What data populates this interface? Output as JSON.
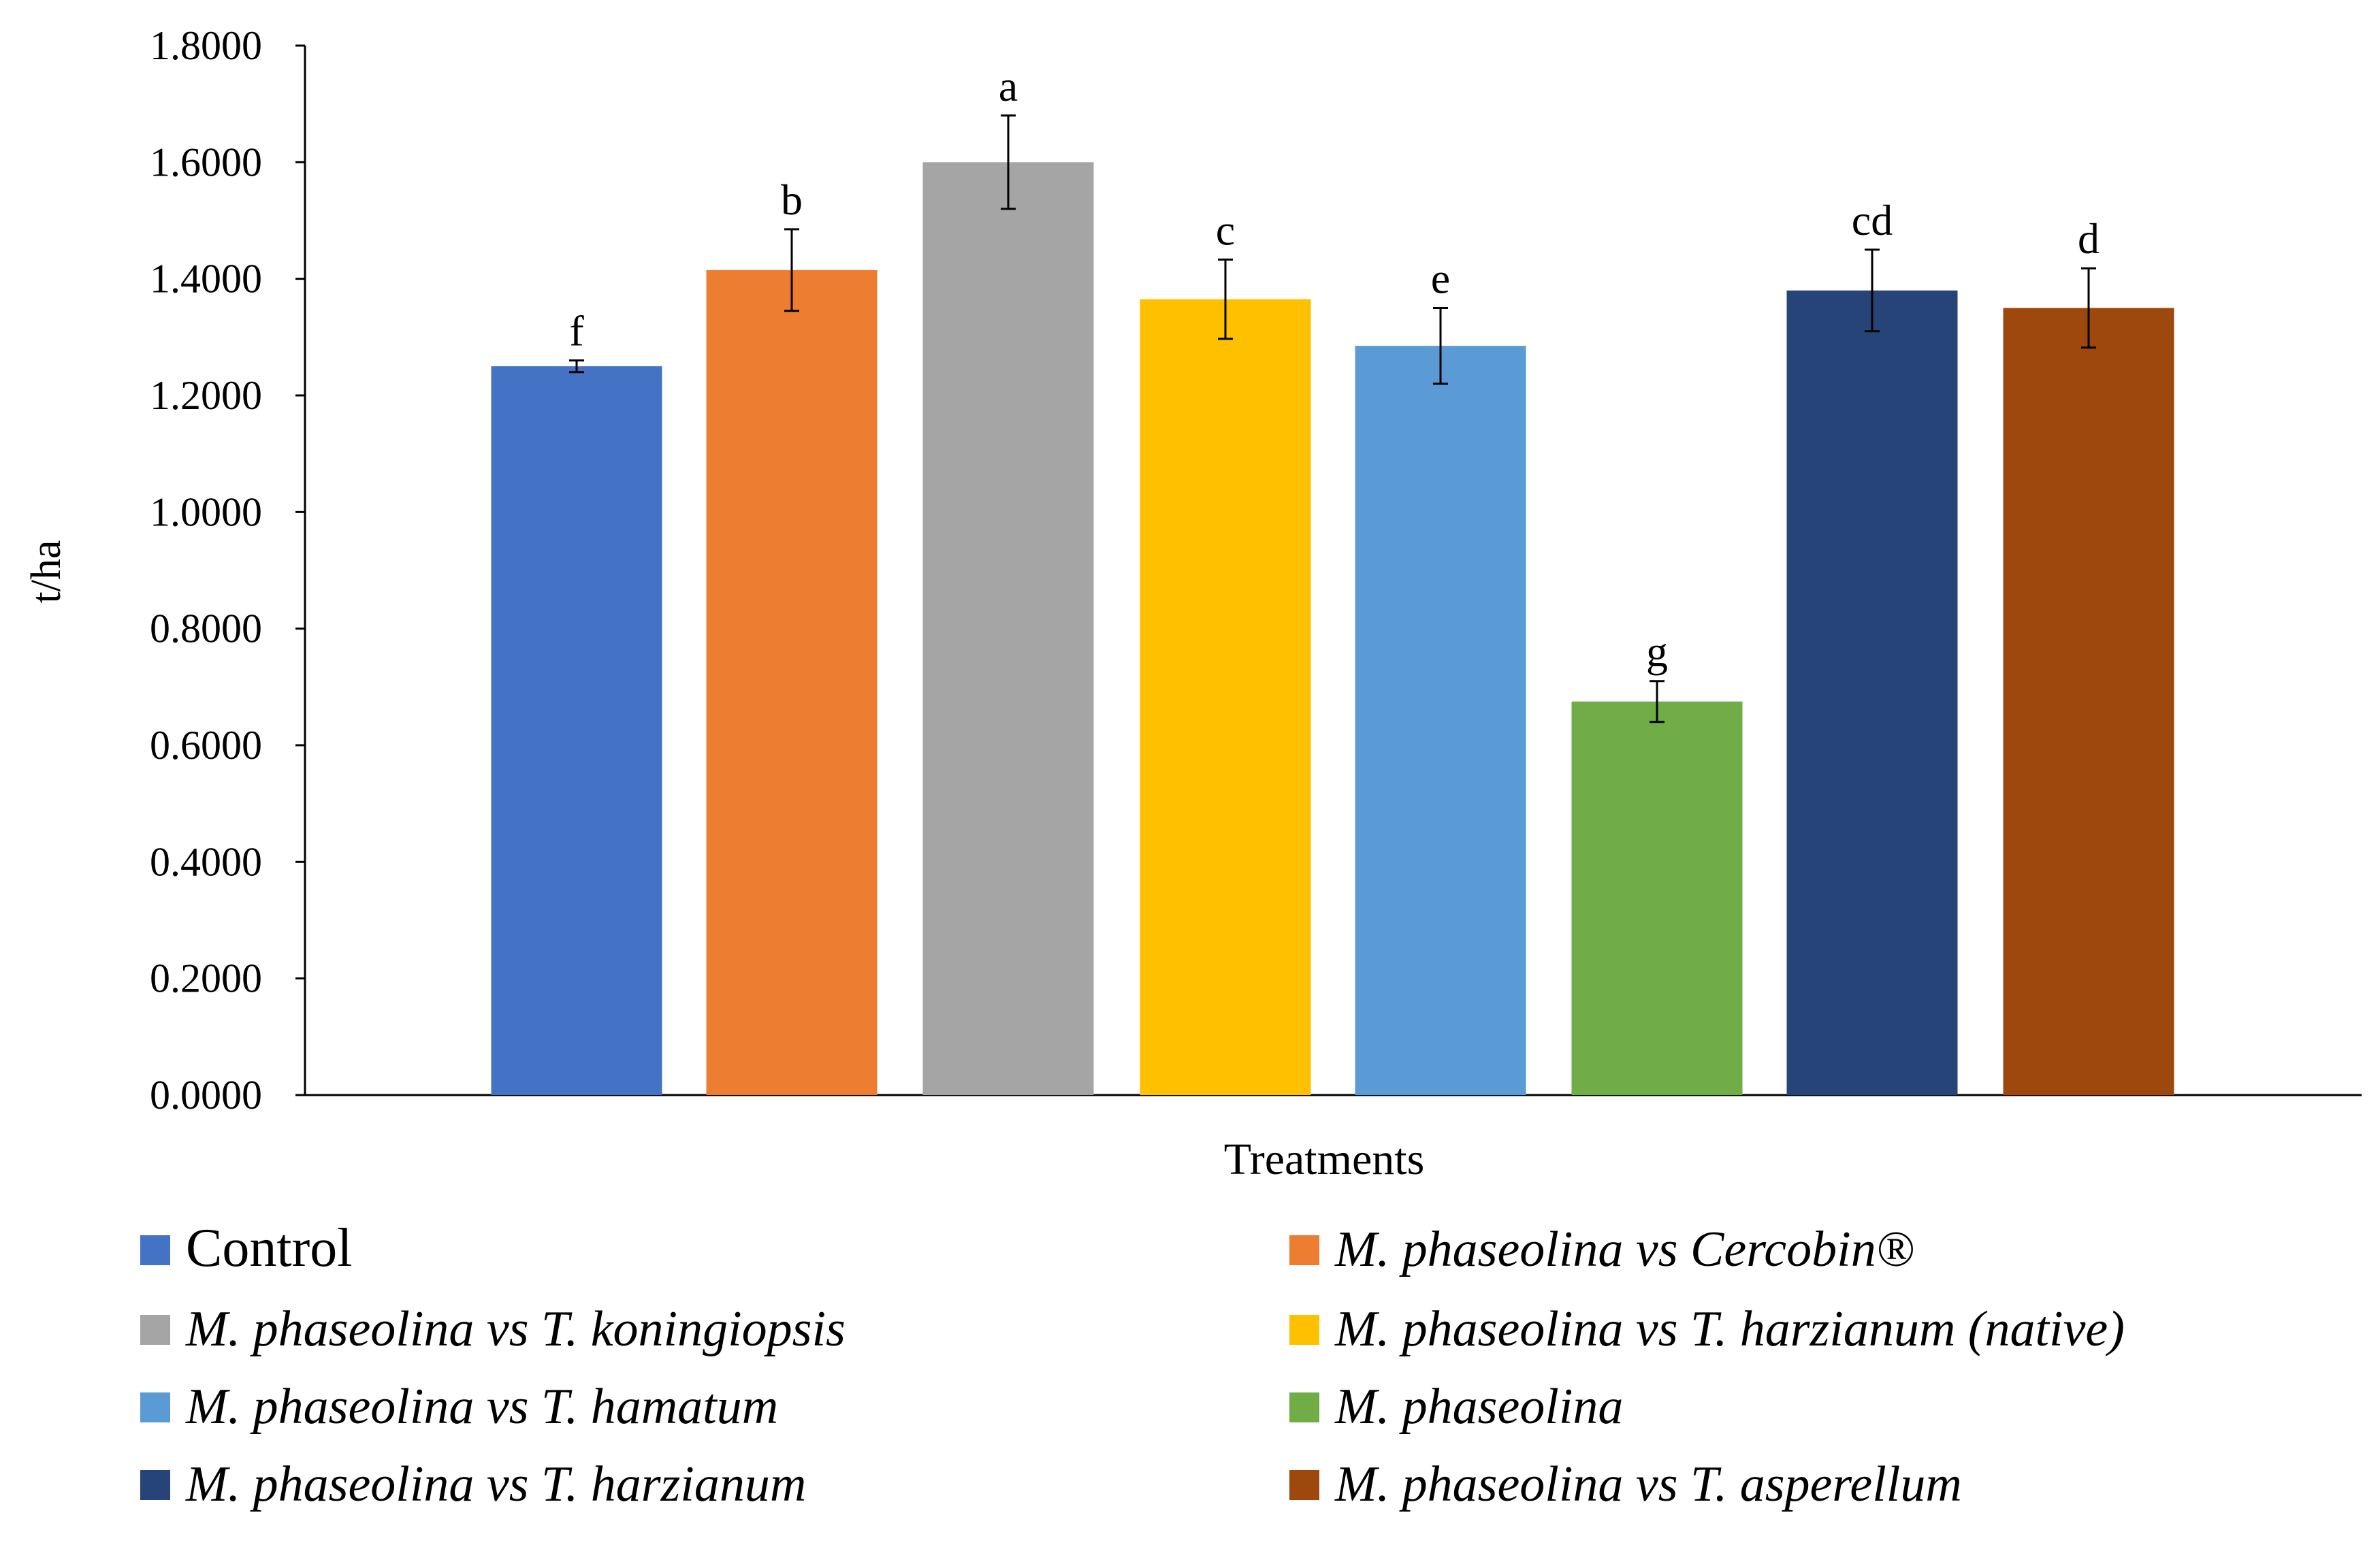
{
  "chart_data": {
    "type": "bar",
    "title": "",
    "xlabel": "Treatments",
    "ylabel": "t/ha",
    "ylim": [
      0,
      1.8
    ],
    "yticks": [
      "0.0000",
      "0.2000",
      "0.4000",
      "0.6000",
      "0.8000",
      "1.0000",
      "1.2000",
      "1.4000",
      "1.6000",
      "1.8000"
    ],
    "grid": false,
    "legend_placement": "bottom",
    "categories": [
      "Control",
      "M. phaseolina vs Cercobin®",
      "M. phaseolina vs T. koningiopsis",
      "M. phaseolina vs T. harzianum (native)",
      "M. phaseolina vs T. hamatum",
      "M. phaseolina",
      "M. phaseolina vs T. harzianum",
      "M. phaseolina vs T. asperellum"
    ],
    "values": [
      1.25,
      1.415,
      1.6,
      1.365,
      1.285,
      0.675,
      1.38,
      1.35
    ],
    "errors": [
      0.01,
      0.07,
      0.08,
      0.068,
      0.065,
      0.035,
      0.07,
      0.068
    ],
    "significance_letters": [
      "f",
      "b",
      "a",
      "c",
      "e",
      "g",
      "cd",
      "d"
    ],
    "colors": [
      "#4472C4",
      "#ED7D31",
      "#A5A5A5",
      "#FFC000",
      "#5B9BD5",
      "#70AD47",
      "#264478",
      "#9E480E"
    ],
    "legend": [
      {
        "label": "Control",
        "italic": false
      },
      {
        "label": "M. phaseolina vs Cercobin®",
        "italic": true
      },
      {
        "label": "M. phaseolina vs T. koningiopsis",
        "italic": true
      },
      {
        "label": "M. phaseolina vs T. harzianum (native)",
        "italic": true
      },
      {
        "label": "M. phaseolina vs T. hamatum",
        "italic": true
      },
      {
        "label": "M. phaseolina",
        "italic": true
      },
      {
        "label": "M. phaseolina vs T. harzianum",
        "italic": true
      },
      {
        "label": "M. phaseolina vs T. asperellum",
        "italic": true
      }
    ]
  }
}
